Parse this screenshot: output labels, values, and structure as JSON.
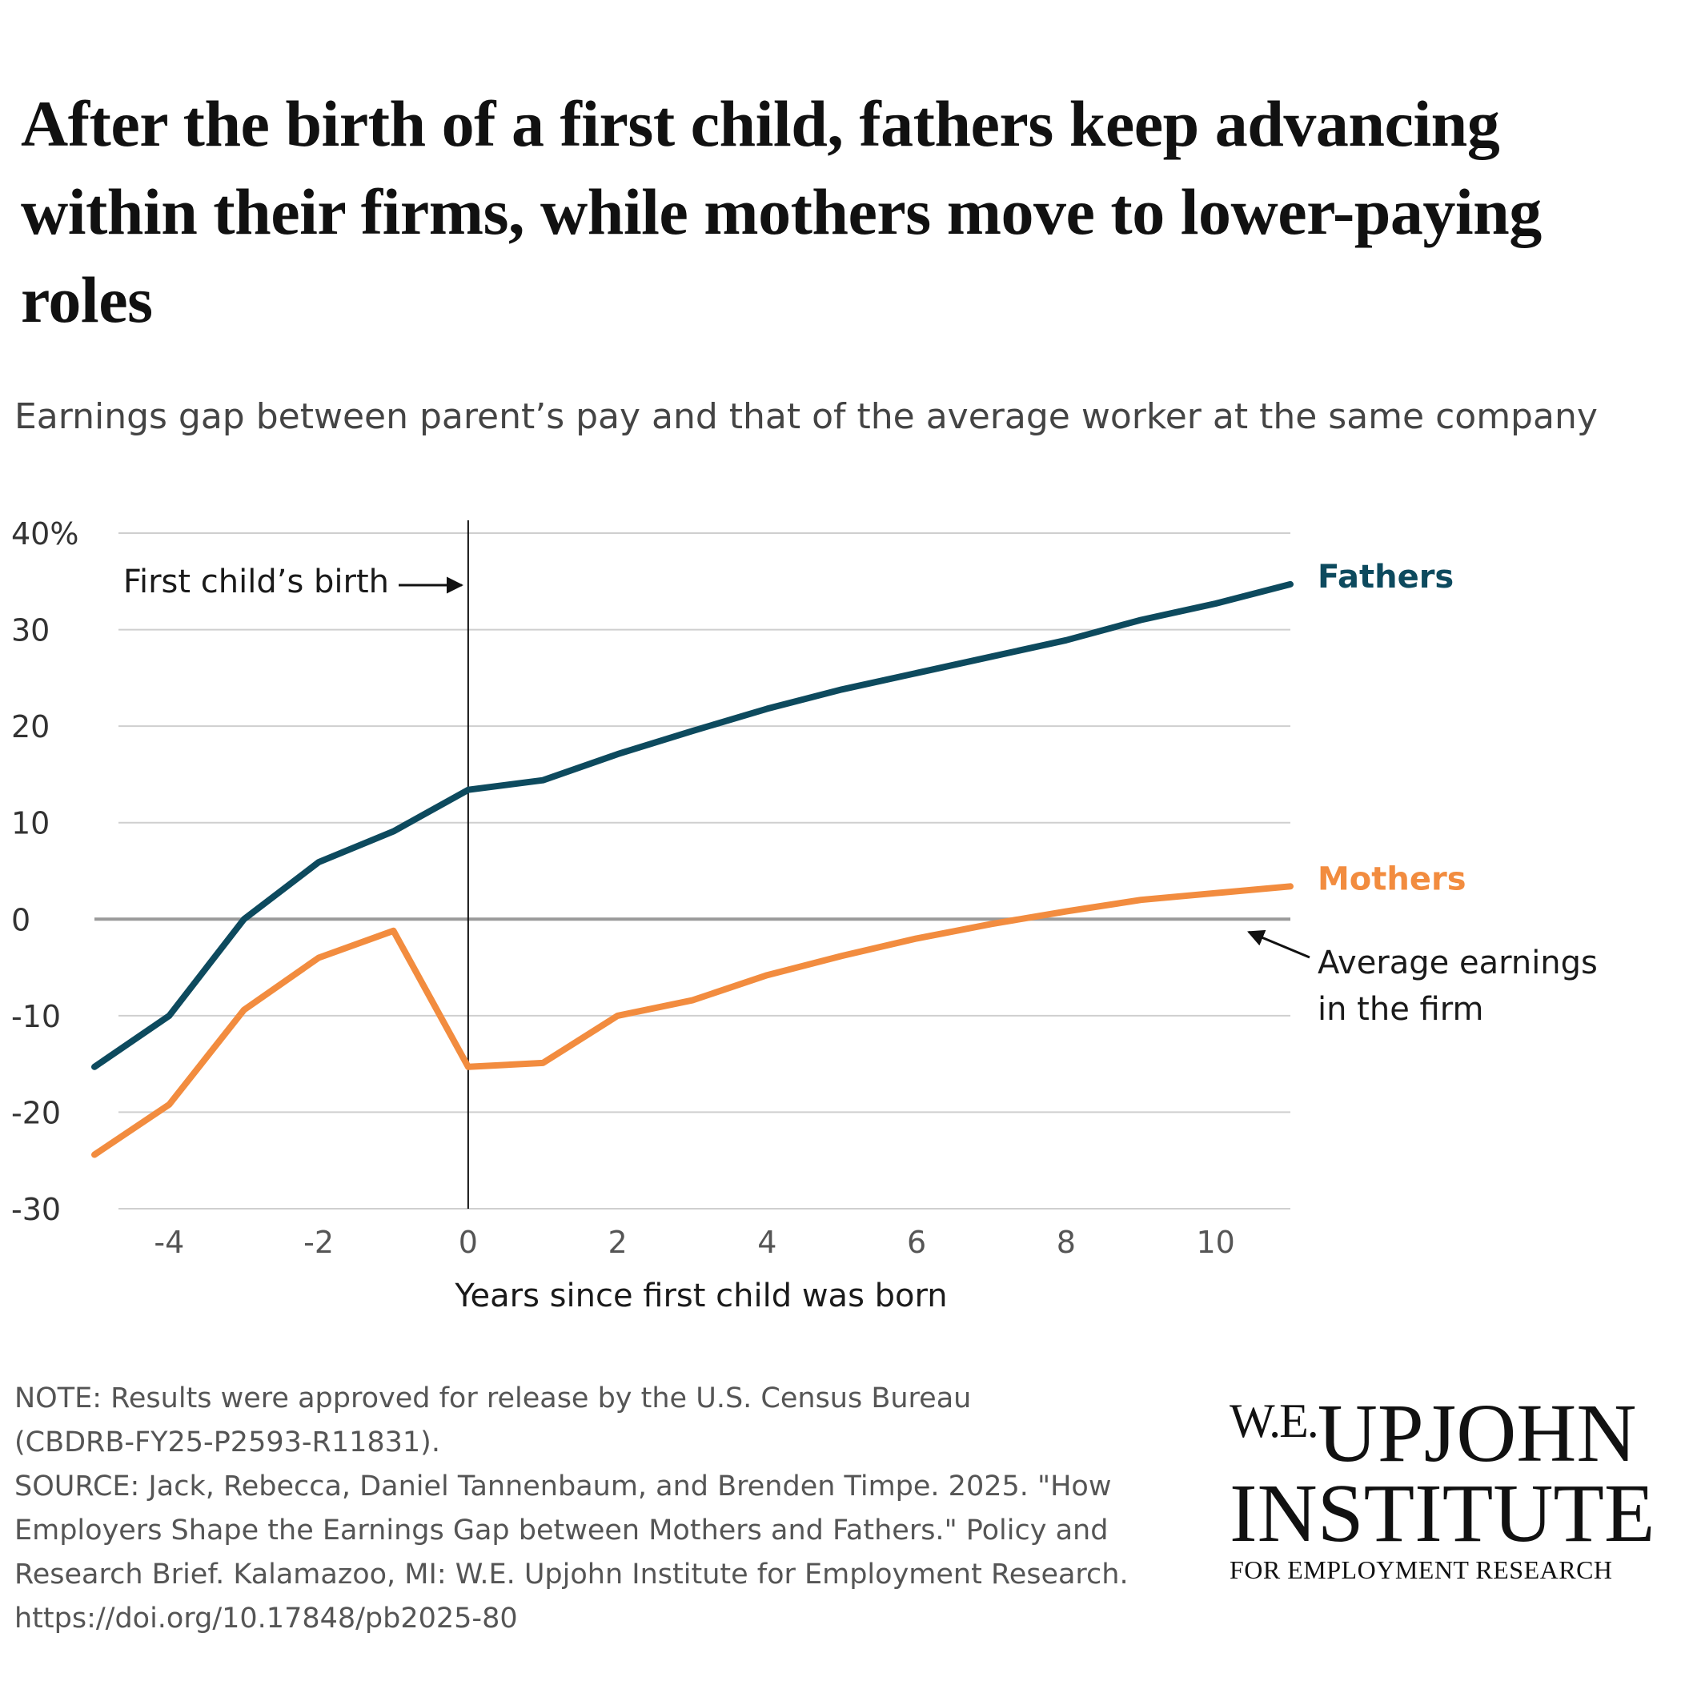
{
  "title": "After the birth of a first child, fathers keep advancing within their firms, while mothers move to lower-paying roles",
  "subtitle": "Earnings gap between parent’s pay and that of the average worker at the same company",
  "chart_data": {
    "type": "line",
    "xlabel": "Years since first child was born",
    "ylabel": "",
    "xlim": [
      -5,
      11
    ],
    "ylim": [
      -30,
      40
    ],
    "x_ticks": [
      -4,
      -2,
      0,
      2,
      4,
      6,
      8,
      10
    ],
    "y_ticks": [
      40,
      30,
      20,
      10,
      0,
      -10,
      -20,
      -30
    ],
    "y_tick_labels": [
      "40%",
      "30",
      "20",
      "10",
      "0",
      "-10",
      "-20",
      "-30"
    ],
    "x": [
      -5,
      -4,
      -3,
      -2,
      -1,
      0,
      1,
      2,
      3,
      4,
      5,
      6,
      7,
      8,
      9,
      10,
      11
    ],
    "series": [
      {
        "name": "Fathers",
        "color": "#0d4a5e",
        "values": [
          -15.3,
          -10,
          0,
          5.9,
          9.1,
          13.4,
          14.4,
          17.1,
          19.5,
          21.8,
          23.8,
          25.5,
          27.2,
          28.9,
          31,
          32.7,
          34.7
        ]
      },
      {
        "name": "Mothers",
        "color": "#f28c3f",
        "values": [
          -24.4,
          -19.2,
          -9.4,
          -4,
          -1.2,
          -15.3,
          -14.9,
          -10,
          -8.4,
          -5.8,
          -3.8,
          -2,
          -0.5,
          0.8,
          2,
          2.7,
          3.4
        ]
      }
    ],
    "reference_lines": [
      {
        "axis": "x",
        "value": 0,
        "label": "First child’s birth"
      },
      {
        "axis": "y",
        "value": 0,
        "label": "Average earnings in the firm"
      }
    ],
    "grid": true
  },
  "annotations": {
    "birth_label": "First child’s birth",
    "avg_label_line1": "Average earnings",
    "avg_label_line2": "in the firm"
  },
  "notes": {
    "line1": "NOTE: Results were approved for release by the U.S. Census Bureau",
    "line2": "(CBDRB-FY25-P2593-R11831).",
    "line3": "SOURCE: Jack, Rebecca, Daniel Tannenbaum, and Brenden Timpe. 2025. \"How",
    "line4": "Employers Shape the Earnings Gap between Mothers and Fathers.\" Policy and",
    "line5": "Research Brief. Kalamazoo, MI: W.E. Upjohn Institute for Employment Research.",
    "line6": "https://doi.org/10.17848/pb2025-80"
  },
  "logo": {
    "prefix": "W.E.",
    "word1": "UPJOHN",
    "word2": "INSTITUTE",
    "tagline": "FOR EMPLOYMENT RESEARCH"
  }
}
